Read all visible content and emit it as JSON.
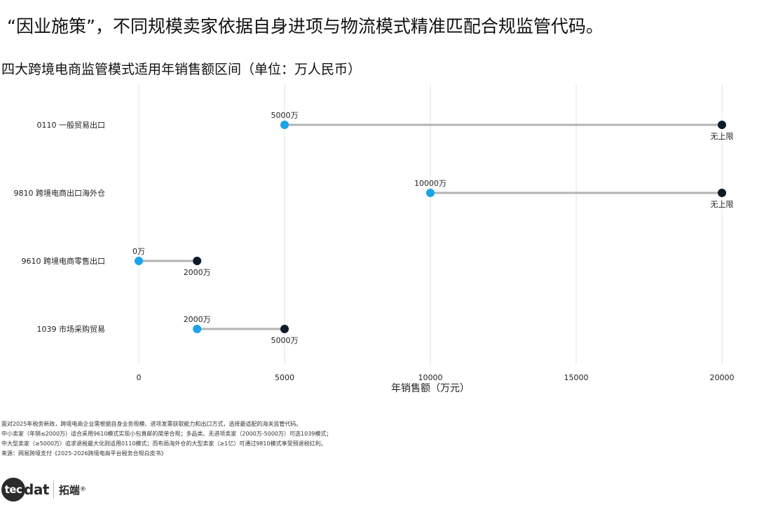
{
  "headline": "“因业施策”，不同规模卖家依据自身进项与物流模式精准匹配合规监管代码。",
  "chart_title": "四大跨境电商监管模式适用年销售额区间（单位：万人民币）",
  "chart_data": {
    "type": "dumbbell",
    "title": "四大跨境电商监管模式适用年销售额区间（单位：万人民币）",
    "xlabel": "年销售额（万元）",
    "ylabel": "",
    "xlim": [
      0,
      20000
    ],
    "xticks": [
      0,
      5000,
      10000,
      15000,
      20000
    ],
    "grid": "vertical",
    "colors": {
      "start": "#1aa3e8",
      "end": "#0d1b2a",
      "segment": "#b3b3b3"
    },
    "rows": [
      {
        "label": "0110  一般贸易出口",
        "start": 5000,
        "end": 20000,
        "start_label": "5000万",
        "end_label": "无上限"
      },
      {
        "label": "9810  跨境电商出口海外仓",
        "start": 10000,
        "end": 20000,
        "start_label": "10000万",
        "end_label": "无上限"
      },
      {
        "label": "9610  跨境电商零售出口",
        "start": 0,
        "end": 2000,
        "start_label": "0万",
        "end_label": "2000万"
      },
      {
        "label": "1039  市场采购贸易",
        "start": 2000,
        "end": 5000,
        "start_label": "2000万",
        "end_label": "5000万"
      }
    ]
  },
  "notes": [
    "面对2025年税务新政，跨境电商企业需根据自身业务规模、进项发票获取能力和出口方式，选择最适配的海关监管代码。",
    "中小卖家（年销≤2000万）适合采用9610模式实现小包直邮的简单合规；多品类、无进项卖家（2000万-5000万）可选1039模式；",
    "中大型卖家（≥5000万）追求退税最大化则适用0110模式；而布局海外仓的大型卖家（≥1亿）可通过9810模式享受预退税红利。",
    "来源：网易跨境支付《2025-2026跨境电商平台税务合规白皮书》"
  ],
  "logo": {
    "badge": "tec",
    "rest": "dat",
    "cn": "拓端",
    "reg": "®"
  }
}
